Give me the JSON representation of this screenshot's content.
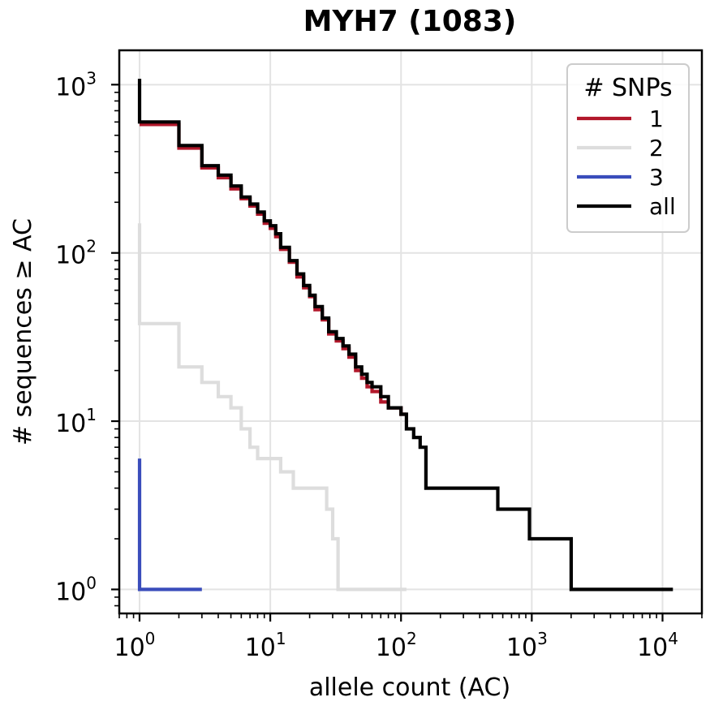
{
  "chart_data": {
    "type": "line",
    "step": true,
    "title": "MYH7 (1083)",
    "xlabel": "allele count (AC)",
    "ylabel": "# sequences ≥ AC",
    "xscale": "log",
    "yscale": "log",
    "xlim": [
      0.7,
      20000
    ],
    "ylim": [
      0.72,
      1600
    ],
    "grid": true,
    "x_ticks": [
      {
        "base": "10",
        "exp": "0"
      },
      {
        "base": "10",
        "exp": "1"
      },
      {
        "base": "10",
        "exp": "2"
      },
      {
        "base": "10",
        "exp": "3"
      },
      {
        "base": "10",
        "exp": "4"
      }
    ],
    "y_ticks": [
      {
        "base": "10",
        "exp": "0"
      },
      {
        "base": "10",
        "exp": "1"
      },
      {
        "base": "10",
        "exp": "2"
      },
      {
        "base": "10",
        "exp": "3"
      }
    ],
    "legend": {
      "title": "# SNPs",
      "location": "upper right"
    },
    "series": [
      {
        "name": "1",
        "color": "#b2182b",
        "x": [
          1,
          1,
          2,
          2,
          3,
          3,
          4,
          4,
          5,
          5,
          6,
          6,
          7,
          7,
          8,
          8,
          9,
          9,
          10,
          10,
          11,
          11,
          12,
          12,
          14,
          14,
          16,
          16,
          18,
          18,
          20,
          20,
          22,
          22,
          25,
          25,
          28,
          28,
          32,
          32,
          36,
          36,
          40,
          40,
          45,
          45,
          50,
          50,
          55,
          55,
          60,
          60,
          70,
          70,
          80,
          80,
          100,
          100,
          110
        ],
        "y": [
          580,
          580,
          580,
          420,
          420,
          320,
          320,
          280,
          280,
          240,
          240,
          210,
          210,
          190,
          190,
          170,
          170,
          150,
          150,
          140,
          140,
          125,
          125,
          105,
          105,
          88,
          88,
          72,
          72,
          62,
          62,
          55,
          55,
          46,
          46,
          40,
          40,
          33,
          33,
          30,
          30,
          27,
          27,
          24,
          24,
          20,
          20,
          18,
          18,
          16,
          16,
          15,
          15,
          13,
          13,
          12,
          12,
          11,
          11
        ]
      },
      {
        "name": "2",
        "color": "#dddddd",
        "x": [
          1,
          1,
          1,
          2,
          2,
          3,
          3,
          4,
          4,
          5,
          5,
          6,
          6,
          7,
          7,
          8,
          8,
          12,
          12,
          15,
          15,
          27,
          27,
          30,
          30,
          33,
          33,
          110
        ],
        "y": [
          150,
          38,
          38,
          38,
          21,
          21,
          17,
          17,
          14,
          14,
          12,
          12,
          9,
          9,
          7,
          7,
          6,
          6,
          5,
          5,
          4,
          4,
          3,
          3,
          2,
          2,
          1,
          1
        ]
      },
      {
        "name": "3",
        "color": "#3a4dbb",
        "x": [
          1,
          1,
          1,
          3
        ],
        "y": [
          6,
          1,
          1,
          1
        ]
      },
      {
        "name": "all",
        "color": "#000000",
        "x": [
          1,
          1,
          2,
          2,
          3,
          3,
          4,
          4,
          5,
          5,
          6,
          6,
          7,
          7,
          8,
          8,
          9,
          9,
          10,
          10,
          11,
          11,
          12,
          12,
          14,
          14,
          16,
          16,
          18,
          18,
          20,
          20,
          22,
          22,
          25,
          25,
          28,
          28,
          32,
          32,
          36,
          36,
          40,
          40,
          45,
          45,
          50,
          50,
          55,
          55,
          60,
          60,
          70,
          70,
          80,
          80,
          100,
          100,
          110,
          110,
          125,
          125,
          140,
          140,
          155,
          155,
          550,
          550,
          960,
          960,
          2000,
          2000,
          12000
        ],
        "y": [
          1083,
          600,
          600,
          435,
          435,
          330,
          330,
          290,
          290,
          250,
          250,
          215,
          215,
          195,
          195,
          175,
          175,
          155,
          155,
          145,
          145,
          130,
          130,
          108,
          108,
          90,
          90,
          75,
          75,
          64,
          64,
          56,
          56,
          48,
          48,
          41,
          41,
          34,
          34,
          31,
          31,
          28,
          28,
          25,
          25,
          21,
          21,
          19,
          19,
          17,
          17,
          16,
          16,
          14,
          14,
          12,
          12,
          11,
          11,
          9,
          9,
          8,
          8,
          7,
          7,
          4,
          4,
          3,
          3,
          2,
          2,
          1,
          1
        ]
      }
    ]
  }
}
